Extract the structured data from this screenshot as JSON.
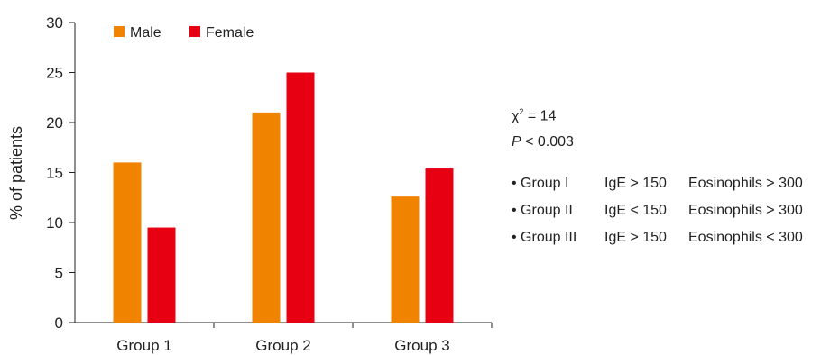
{
  "chart_data": {
    "type": "bar",
    "categories": [
      "Group 1",
      "Group 2",
      "Group 3"
    ],
    "series": [
      {
        "name": "Male",
        "values": [
          16,
          21,
          12.6
        ],
        "color": "#f08300"
      },
      {
        "name": "Female",
        "values": [
          9.5,
          25,
          15.4
        ],
        "color": "#e60012"
      }
    ],
    "ylabel": "% of patients",
    "xlabel": "",
    "ylim": [
      0,
      30
    ],
    "yticks": [
      "0",
      "5",
      "10",
      "15",
      "20",
      "25",
      "30"
    ],
    "grid": false,
    "legend": "top-left"
  },
  "annotations": {
    "chi_text": "χ",
    "chi_exp": "2",
    "chi_value": " = 14",
    "p_letter": "P",
    "p_rest": " < 0.003",
    "groups": [
      {
        "name": "• Group I",
        "ige": "IgE > 150",
        "eos": "Eosinophils > 300"
      },
      {
        "name": "• Group II",
        "ige": "IgE < 150",
        "eos": "Eosinophils > 300"
      },
      {
        "name": "• Group III",
        "ige": "IgE > 150",
        "eos": "Eosinophils < 300"
      }
    ]
  }
}
